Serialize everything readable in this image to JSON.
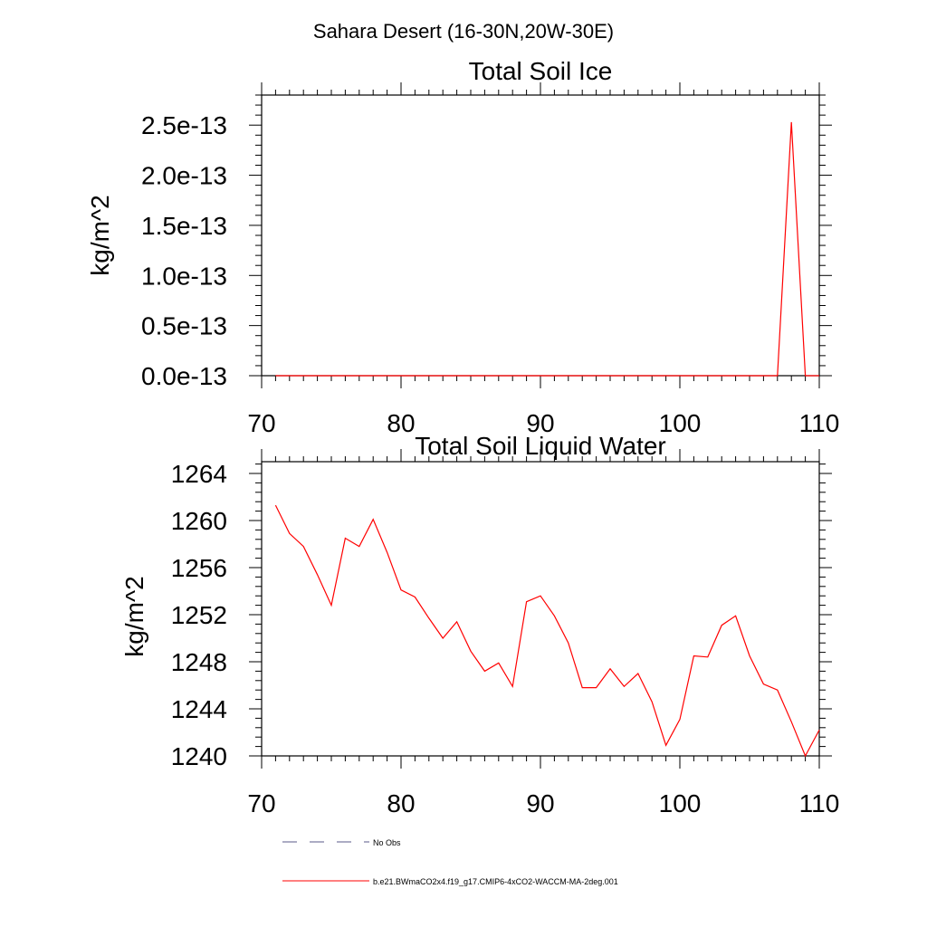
{
  "figure": {
    "suptitle": "Sahara Desert (16-30N,20W-30E)"
  },
  "chart_data": [
    {
      "type": "line",
      "title": "Total Soil Ice",
      "xlabel": "",
      "ylabel": "kg/m^2",
      "xlim": [
        70,
        110
      ],
      "ylim": [
        0,
        2.8e-13
      ],
      "xticks": [
        70,
        80,
        90,
        100,
        110
      ],
      "xtick_labels": [
        "70",
        "80",
        "90",
        "100",
        "110"
      ],
      "yticks": [
        0,
        5e-14,
        1e-13,
        1.5e-13,
        2e-13,
        2.5e-13
      ],
      "ytick_labels": [
        "0.0e-13",
        "0.5e-13",
        "1.0e-13",
        "1.5e-13",
        "2.0e-13",
        "2.5e-13"
      ],
      "series": [
        {
          "name": "b.e21.BWmaCO2x4.f19_g17.CMIP6-4xCO2-WACCM-MA-2deg.001",
          "color": "#ff0000",
          "x": [
            71,
            72,
            73,
            74,
            75,
            76,
            77,
            78,
            79,
            80,
            81,
            82,
            83,
            84,
            85,
            86,
            87,
            88,
            89,
            90,
            91,
            92,
            93,
            94,
            95,
            96,
            97,
            98,
            99,
            100,
            101,
            102,
            103,
            104,
            105,
            106,
            107,
            108,
            109,
            110
          ],
          "y": [
            0,
            0,
            0,
            0,
            0,
            0,
            0,
            0,
            0,
            0,
            0,
            0,
            0,
            0,
            0,
            0,
            0,
            0,
            0,
            0,
            0,
            0,
            0,
            0,
            0,
            0,
            0,
            0,
            0,
            0,
            0,
            0,
            0,
            0,
            0,
            0,
            0,
            2.53e-13,
            0,
            0
          ]
        }
      ]
    },
    {
      "type": "line",
      "title": "Total Soil Liquid Water",
      "xlabel": "",
      "ylabel": "kg/m^2",
      "xlim": [
        70,
        110
      ],
      "ylim": [
        1240,
        1265
      ],
      "xticks": [
        70,
        80,
        90,
        100,
        110
      ],
      "xtick_labels": [
        "70",
        "80",
        "90",
        "100",
        "110"
      ],
      "yticks": [
        1240,
        1244,
        1248,
        1252,
        1256,
        1260,
        1264
      ],
      "ytick_labels": [
        "1240",
        "1244",
        "1248",
        "1252",
        "1256",
        "1260",
        "1264"
      ],
      "series": [
        {
          "name": "b.e21.BWmaCO2x4.f19_g17.CMIP6-4xCO2-WACCM-MA-2deg.001",
          "color": "#ff0000",
          "x": [
            71,
            72,
            73,
            74,
            75,
            76,
            77,
            78,
            79,
            80,
            81,
            82,
            83,
            84,
            85,
            86,
            87,
            88,
            89,
            90,
            91,
            92,
            93,
            94,
            95,
            96,
            97,
            98,
            99,
            100,
            101,
            102,
            103,
            104,
            105,
            106,
            107,
            108,
            109,
            110
          ],
          "y": [
            1261.3,
            1258.9,
            1257.8,
            1255.4,
            1252.8,
            1258.5,
            1257.8,
            1260.1,
            1257.3,
            1254.1,
            1253.5,
            1251.7,
            1250.0,
            1251.4,
            1248.9,
            1247.2,
            1247.9,
            1245.9,
            1253.1,
            1253.6,
            1251.9,
            1249.6,
            1245.8,
            1245.8,
            1247.4,
            1245.9,
            1247.0,
            1244.6,
            1240.9,
            1243.1,
            1248.5,
            1248.4,
            1251.1,
            1251.9,
            1248.5,
            1246.1,
            1245.6,
            1242.9,
            1240.0,
            1242.2
          ]
        }
      ]
    }
  ],
  "legend": {
    "items": [
      {
        "label": "No Obs",
        "color": "#5a5a8a",
        "style": "dashed"
      },
      {
        "label": "b.e21.BWmaCO2x4.f19_g17.CMIP6-4xCO2-WACCM-MA-2deg.001",
        "color": "#ff0000",
        "style": "solid"
      }
    ]
  }
}
